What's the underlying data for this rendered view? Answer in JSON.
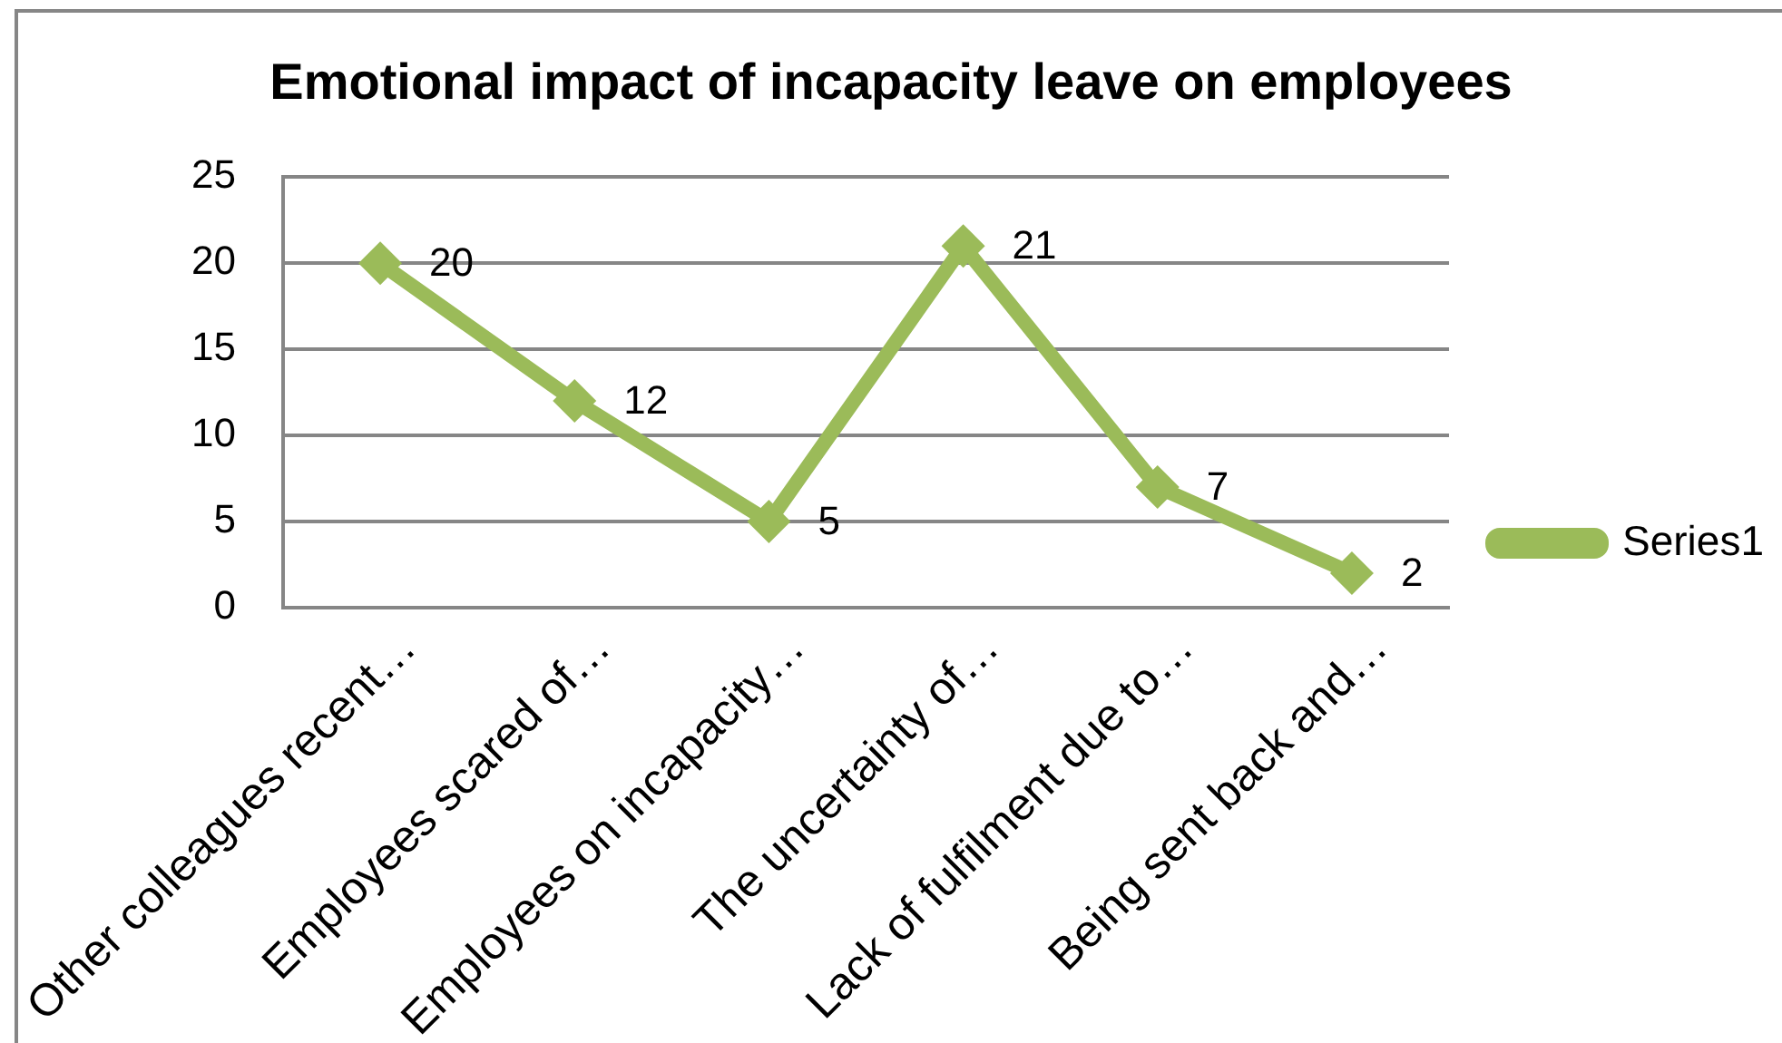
{
  "chart_data": {
    "type": "line",
    "title": "Emotional impact of incapacity leave on employees",
    "categories": [
      "Other colleagues recent…",
      "Employees scared of…",
      "Employees on incapacity…",
      "The uncertainty of…",
      "Lack of fulfilment due to…",
      "Being sent back and…"
    ],
    "series": [
      {
        "name": "Series1",
        "color": "#9bbb59",
        "values": [
          20,
          12,
          5,
          21,
          7,
          2
        ]
      }
    ],
    "ylim": [
      0,
      25
    ],
    "yticks": [
      0,
      5,
      10,
      15,
      20,
      25
    ],
    "grid": "y",
    "legend": "right",
    "marker": "diamond",
    "line_style": "solid",
    "data_labels": true
  }
}
